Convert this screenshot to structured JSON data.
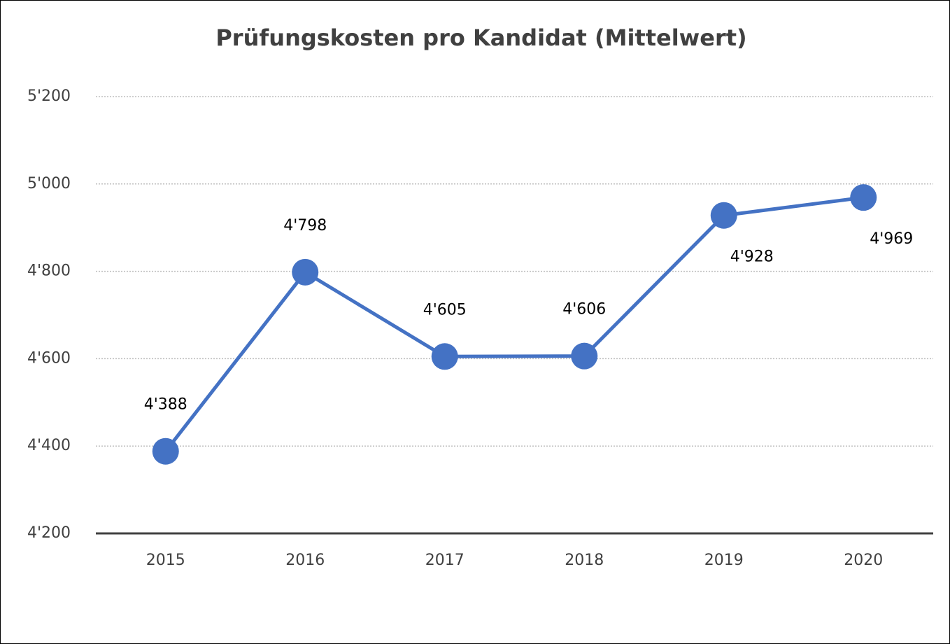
{
  "chart_data": {
    "type": "line",
    "title": "Prüfungskosten pro Kandidat (Mittelwert)",
    "categories": [
      "2015",
      "2016",
      "2017",
      "2018",
      "2019",
      "2020"
    ],
    "series": [
      {
        "name": "Mittelwert",
        "color": "#4472c4",
        "values": [
          4388,
          4798,
          4605,
          4606,
          4928,
          4969
        ],
        "value_labels": [
          "4'388",
          "4'798",
          "4'605",
          "4'606",
          "4'928",
          "4'969"
        ]
      }
    ],
    "ylim": [
      4200,
      5200
    ],
    "yticks": [
      {
        "value": 4200,
        "label": "4'200"
      },
      {
        "value": 4400,
        "label": "4'400"
      },
      {
        "value": 4600,
        "label": "4'600"
      },
      {
        "value": 4800,
        "label": "4'800"
      },
      {
        "value": 5000,
        "label": "5'000"
      },
      {
        "value": 5200,
        "label": "5'200"
      }
    ],
    "grid": true
  }
}
